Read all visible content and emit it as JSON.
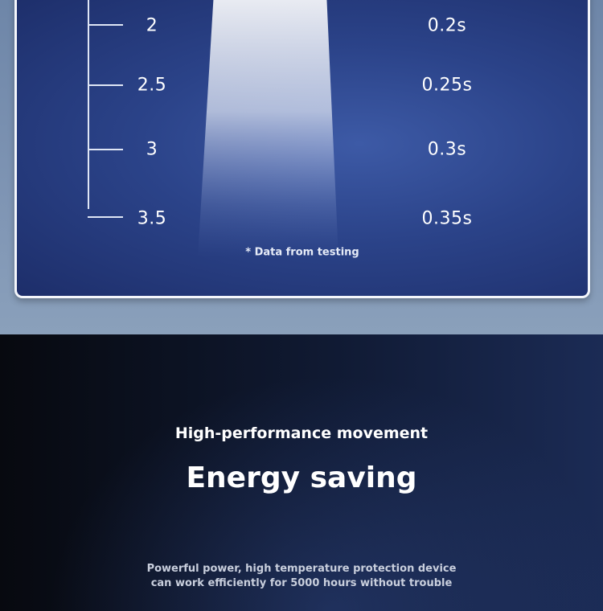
{
  "scale": {
    "rows": [
      {
        "left": "2",
        "right": "0.2s"
      },
      {
        "left": "2.5",
        "right": "0.25s"
      },
      {
        "left": "3",
        "right": "0.3s"
      },
      {
        "left": "3.5",
        "right": "0.35s"
      }
    ],
    "note": "* Data from testing"
  },
  "feature": {
    "subtitle": "High-performance movement",
    "headline": "Energy saving",
    "description_line1": "Powerful power, high temperature protection device",
    "description_line2": "can work efficiently for 5000 hours without trouble"
  },
  "colors": {
    "card_blue": "#2b4389",
    "border": "#f4f6fb",
    "dark_bg": "#0b0f1c"
  }
}
